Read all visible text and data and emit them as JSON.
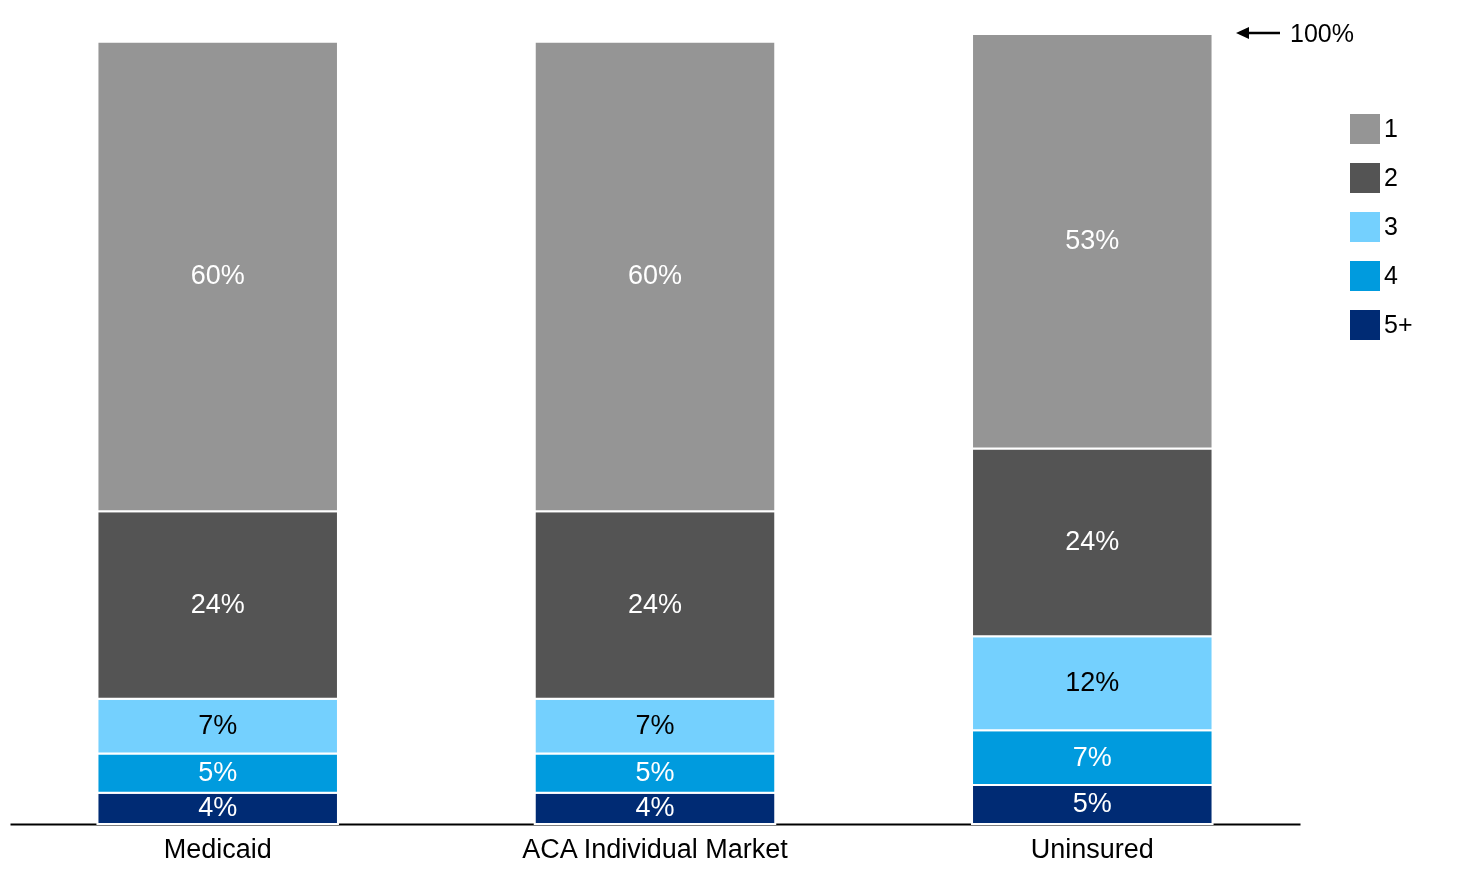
{
  "chart_data": {
    "type": "bar",
    "stacked": true,
    "legend": "top right",
    "tick_labels": "x",
    "categories": [
      "Medicaid",
      "ACA Individual Market",
      "Uninsured"
    ],
    "series": [
      {
        "name": "5+",
        "color": "#002b74",
        "values": [
          4,
          4,
          5
        ],
        "value_labels": [
          "4%",
          "4%",
          "5%"
        ]
      },
      {
        "name": "4",
        "color": "#009bde",
        "values": [
          5,
          5,
          7
        ],
        "value_labels": [
          "5%",
          "5%",
          "7%"
        ]
      },
      {
        "name": "3",
        "color": "#74d0fe",
        "values": [
          7,
          7,
          12
        ],
        "value_labels": [
          "7%",
          "7%",
          "12%"
        ]
      },
      {
        "name": "2",
        "color": "#545454",
        "values": [
          24,
          24,
          24
        ],
        "value_labels": [
          "24%",
          "24%",
          "24%"
        ]
      },
      {
        "name": "1",
        "color": "#959595",
        "values": [
          60,
          60,
          53
        ],
        "value_labels": [
          "60%",
          "60%",
          "53%"
        ]
      }
    ],
    "annotations": [
      "100%"
    ]
  }
}
